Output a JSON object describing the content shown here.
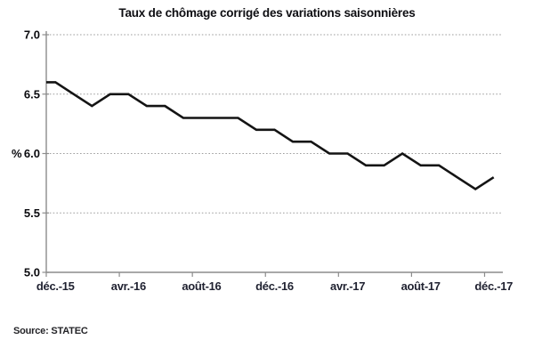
{
  "title": "Taux de chômage corrigé des variations saisonnières",
  "source": "Source: STATEC",
  "chart_data": {
    "type": "line",
    "title": "Taux de chômage corrigé des variations saisonnières",
    "ylabel": "%",
    "xlabel": "",
    "ylim": [
      5.0,
      7.0
    ],
    "y_ticks": [
      "7.0",
      "6.5",
      "6.0",
      "5.5",
      "5.0"
    ],
    "x_tick_labels": [
      "déc.-15",
      "avr.-16",
      "août-16",
      "déc.-16",
      "avr.-17",
      "août-17",
      "déc.-17"
    ],
    "x": [
      "déc.-15",
      "janv.-16",
      "févr.-16",
      "mars-16",
      "avr.-16",
      "mai-16",
      "juin-16",
      "juil.-16",
      "août-16",
      "sept.-16",
      "oct.-16",
      "nov.-16",
      "déc.-16",
      "janv.-17",
      "févr.-17",
      "mars-17",
      "avr.-17",
      "mai-17",
      "juin-17",
      "juil.-17",
      "août-17",
      "sept.-17",
      "oct.-17",
      "nov.-17",
      "déc.-17"
    ],
    "values": [
      6.6,
      6.5,
      6.4,
      6.5,
      6.5,
      6.4,
      6.4,
      6.3,
      6.3,
      6.3,
      6.3,
      6.2,
      6.2,
      6.1,
      6.1,
      6.0,
      6.0,
      5.9,
      5.9,
      6.0,
      5.9,
      5.9,
      5.8,
      5.7,
      5.8
    ],
    "grid": "horizontal-dotted",
    "legend": "none",
    "line_color": "#141414",
    "axis_color": "#8c8c8c",
    "grid_color": "#9e9e9e"
  }
}
